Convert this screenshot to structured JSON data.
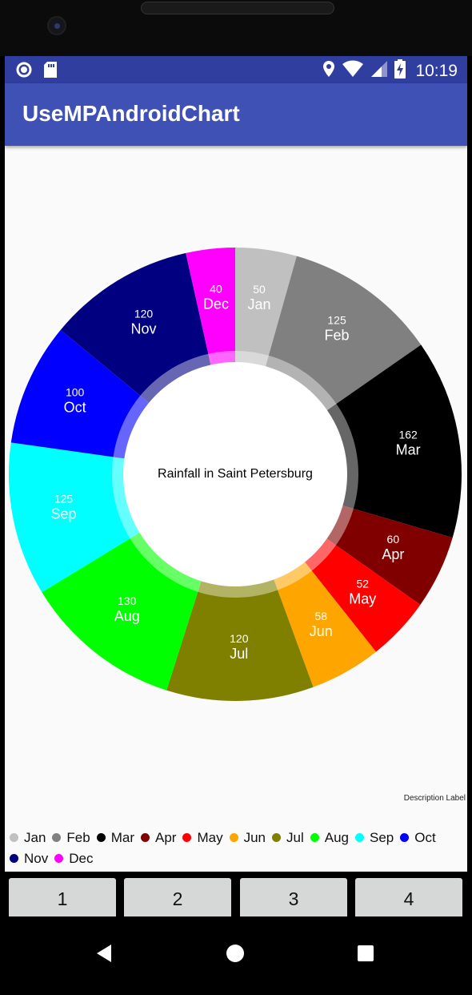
{
  "status_bar": {
    "time": "10:19"
  },
  "app_bar": {
    "title": "UseMPAndroidChart"
  },
  "chart_data": {
    "type": "pie",
    "style": "donut",
    "center_text": "Rainfall in Saint Petersburg",
    "description": "Description Label",
    "legend_position": "bottom-left",
    "categories": [
      "Jan",
      "Feb",
      "Mar",
      "Apr",
      "May",
      "Jun",
      "Jul",
      "Aug",
      "Sep",
      "Oct",
      "Nov",
      "Dec"
    ],
    "values": [
      50,
      125,
      162,
      60,
      52,
      58,
      120,
      130,
      125,
      100,
      120,
      40
    ],
    "colors": [
      "#c0c0c0",
      "#808080",
      "#000000",
      "#800000",
      "#ff0000",
      "#ffa500",
      "#808000",
      "#00ff00",
      "#00ffff",
      "#0000ff",
      "#000080",
      "#ff00ff"
    ]
  },
  "buttons": [
    "1",
    "2",
    "3",
    "4"
  ],
  "nav": {
    "back": "back-icon",
    "home": "home-icon",
    "recents": "recents-icon"
  }
}
